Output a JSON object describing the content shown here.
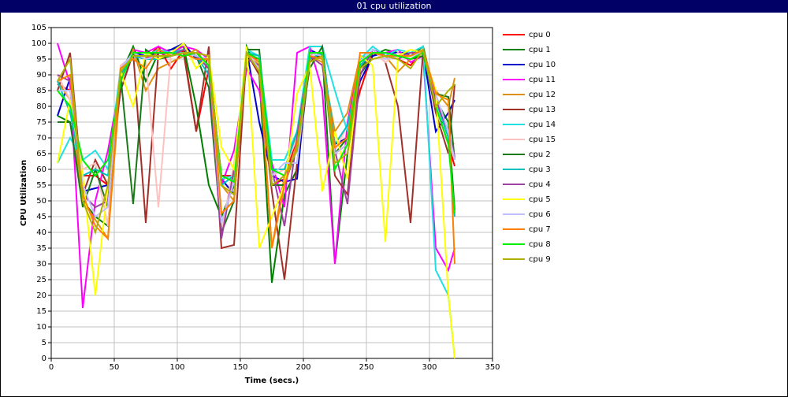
{
  "chart_data": {
    "type": "line",
    "title": "01 cpu utilization",
    "x_label": "Time (secs.)",
    "y_label": "CPU Utilization",
    "xlim": [
      0,
      350
    ],
    "ylim": [
      0,
      105
    ],
    "xticks": [
      0,
      50,
      100,
      150,
      200,
      250,
      300,
      350
    ],
    "yticks": [
      0,
      5,
      10,
      15,
      20,
      25,
      30,
      35,
      40,
      45,
      50,
      55,
      60,
      65,
      70,
      75,
      80,
      85,
      90,
      95,
      100,
      105
    ],
    "grid": true,
    "legend": "right",
    "x": [
      5,
      15,
      25,
      35,
      45,
      55,
      65,
      75,
      85,
      95,
      105,
      115,
      125,
      135,
      145,
      155,
      165,
      175,
      185,
      195,
      205,
      215,
      225,
      235,
      245,
      255,
      265,
      275,
      285,
      295,
      305,
      315,
      320
    ],
    "series": [
      {
        "name": "cpu 0",
        "color": "#ff0000",
        "values": [
          87,
          85,
          58,
          58,
          55,
          90,
          97,
          95,
          99,
          92,
          98,
          72,
          92,
          58,
          58,
          96,
          95,
          55,
          57,
          70,
          95,
          96,
          65,
          68,
          85,
          97,
          96,
          95,
          93,
          98,
          80,
          68,
          61
        ]
      },
      {
        "name": "cpu 1",
        "color": "#008000",
        "values": [
          77,
          75,
          50,
          45,
          42,
          90,
          99,
          88,
          97,
          98,
          99,
          80,
          55,
          45,
          55,
          99,
          90,
          24,
          52,
          60,
          94,
          97,
          30,
          65,
          90,
          96,
          98,
          97,
          96,
          99,
          82,
          75,
          47
        ]
      },
      {
        "name": "cpu 10",
        "color": "#0000cc",
        "values": [
          77,
          89,
          53,
          54,
          55,
          85,
          97,
          96,
          97,
          98,
          100,
          95,
          95,
          57,
          52,
          98,
          75,
          58,
          56,
          57,
          98,
          96,
          68,
          70,
          88,
          96,
          97,
          97,
          97,
          97,
          72,
          78,
          82
        ]
      },
      {
        "name": "cpu 11",
        "color": "#ff00ff",
        "values": [
          100,
          87,
          16,
          50,
          66,
          88,
          98,
          97,
          99,
          97,
          99,
          98,
          95,
          55,
          66,
          92,
          85,
          62,
          48,
          97,
          99,
          85,
          30,
          75,
          95,
          97,
          97,
          98,
          94,
          96,
          35,
          28,
          35
        ]
      },
      {
        "name": "cpu 12",
        "color": "#e09010",
        "values": [
          88,
          82,
          50,
          44,
          38,
          88,
          98,
          85,
          92,
          94,
          96,
          98,
          92,
          55,
          50,
          97,
          93,
          35,
          58,
          72,
          96,
          94,
          72,
          78,
          96,
          95,
          96,
          91,
          95,
          97,
          85,
          80,
          89
        ]
      },
      {
        "name": "cpu 13",
        "color": "#a03028",
        "values": [
          85,
          97,
          52,
          63,
          55,
          85,
          97,
          43,
          97,
          96,
          97,
          72,
          99,
          35,
          36,
          97,
          90,
          53,
          25,
          62,
          94,
          97,
          58,
          52,
          92,
          98,
          94,
          80,
          43,
          98,
          78,
          65,
          87
        ]
      },
      {
        "name": "cpu 14",
        "color": "#20e0e0",
        "values": [
          62,
          70,
          63,
          66,
          60,
          92,
          96,
          96,
          98,
          97,
          97,
          96,
          93,
          57,
          58,
          98,
          96,
          63,
          63,
          72,
          99,
          99,
          85,
          72,
          95,
          99,
          96,
          98,
          97,
          99,
          28,
          20,
          0
        ]
      },
      {
        "name": "cpu 15",
        "color": "#ffc0c0",
        "values": [
          90,
          82,
          60,
          62,
          42,
          93,
          96,
          95,
          48,
          97,
          98,
          96,
          92,
          40,
          62,
          96,
          94,
          58,
          60,
          70,
          96,
          97,
          66,
          74,
          92,
          98,
          94,
          97,
          95,
          98,
          82,
          70,
          68
        ]
      },
      {
        "name": "cpu 2",
        "color": "#1a7a1a",
        "values": [
          75,
          75,
          48,
          60,
          48,
          90,
          49,
          98,
          95,
          96,
          97,
          96,
          86,
          40,
          50,
          98,
          98,
          55,
          55,
          67,
          92,
          99,
          65,
          70,
          92,
          97,
          96,
          96,
          95,
          96,
          84,
          83,
          63
        ]
      },
      {
        "name": "cpu 3",
        "color": "#00c0c0",
        "values": [
          88,
          78,
          58,
          60,
          58,
          90,
          96,
          95,
          95,
          97,
          98,
          96,
          90,
          55,
          58,
          97,
          96,
          60,
          60,
          72,
          95,
          97,
          68,
          74,
          93,
          97,
          97,
          96,
          96,
          98,
          82,
          70,
          45
        ]
      },
      {
        "name": "cpu 4",
        "color": "#a040a0",
        "values": [
          90,
          88,
          52,
          48,
          50,
          92,
          97,
          95,
          97,
          96,
          98,
          96,
          92,
          38,
          60,
          95,
          93,
          60,
          42,
          70,
          96,
          93,
          66,
          49,
          90,
          98,
          96,
          95,
          97,
          97,
          82,
          72,
          64
        ]
      },
      {
        "name": "cpu 5",
        "color": "#ffff00",
        "values": [
          62,
          82,
          58,
          20,
          55,
          91,
          80,
          97,
          95,
          97,
          100,
          92,
          96,
          67,
          60,
          99,
          35,
          45,
          55,
          84,
          93,
          53,
          72,
          57,
          96,
          93,
          37,
          96,
          98,
          97,
          85,
          20,
          0
        ]
      },
      {
        "name": "cpu 6",
        "color": "#c0c0ff",
        "values": [
          85,
          85,
          55,
          45,
          48,
          92,
          97,
          95,
          96,
          96,
          97,
          96,
          95,
          43,
          56,
          97,
          92,
          58,
          62,
          62,
          97,
          96,
          65,
          68,
          94,
          98,
          95,
          96,
          96,
          97,
          84,
          72,
          63
        ]
      },
      {
        "name": "cpu 7",
        "color": "#ff8000",
        "values": [
          88,
          90,
          52,
          42,
          38,
          92,
          95,
          92,
          98,
          96,
          97,
          95,
          95,
          46,
          50,
          97,
          94,
          35,
          55,
          68,
          96,
          95,
          67,
          70,
          97,
          97,
          96,
          96,
          96,
          98,
          84,
          82,
          30
        ]
      },
      {
        "name": "cpu 8",
        "color": "#00ee00",
        "values": [
          85,
          80,
          63,
          58,
          63,
          88,
          97,
          97,
          97,
          97,
          96,
          97,
          93,
          58,
          56,
          97,
          95,
          60,
          58,
          66,
          97,
          97,
          60,
          68,
          94,
          97,
          97,
          96,
          95,
          97,
          80,
          68,
          46
        ]
      },
      {
        "name": "cpu 9",
        "color": "#b0b000",
        "values": [
          88,
          95,
          50,
          40,
          55,
          91,
          96,
          96,
          96,
          96,
          97,
          97,
          96,
          55,
          52,
          97,
          91,
          55,
          58,
          66,
          94,
          96,
          62,
          65,
          92,
          95,
          96,
          95,
          92,
          98,
          80,
          85,
          87
        ]
      }
    ]
  }
}
